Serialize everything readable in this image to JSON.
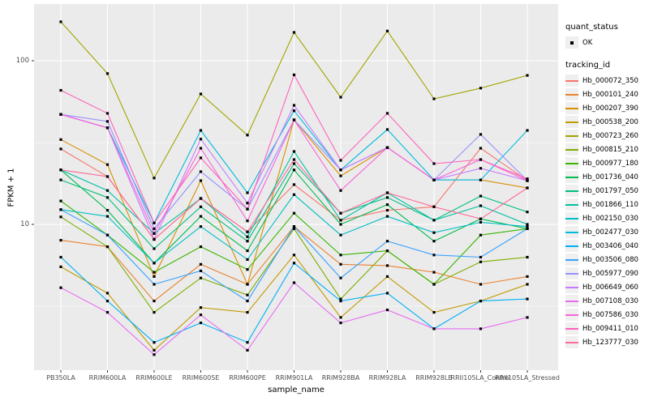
{
  "axes": {
    "x_title": "sample_name",
    "y_title": "FPKM + 1"
  },
  "legend": {
    "quant": {
      "title": "quant_status",
      "items": [
        {
          "label": "OK",
          "marker": "filled-point"
        }
      ]
    },
    "tracking": {
      "title": "tracking_id"
    }
  },
  "chart_data": {
    "type": "line",
    "title": "",
    "xlabel": "sample_name",
    "ylabel": "FPKM + 1",
    "yscale": "log10",
    "ylim": [
      1.2,
      215
    ],
    "y_ticks": [
      100,
      10
    ],
    "y_minor_gridlines": [
      31.62,
      3.162
    ],
    "grid": "white major+minor gridlines on gray panel",
    "panel_color": "#EBEBEB",
    "gridline_color": "#FFFFFF",
    "legend_position": "right",
    "point_marker": {
      "legend_label": "OK",
      "shape": "small-filled-square",
      "color": "#000000"
    },
    "categories": [
      "PB350LA",
      "RRIM600LA",
      "RRIM600LE",
      "RRIM600SE",
      "RRIM600PE",
      "RRIM901LA",
      "RRIM928BA",
      "RRIM928LA",
      "RRIM928LB",
      "RRII105LA_Control",
      "RRII105LA_Stressed"
    ],
    "series": [
      {
        "name": "Hb_000072_350",
        "color": "#F8766D",
        "values": [
          28.9,
          19.6,
          8.1,
          14.4,
          9.0,
          17.5,
          10.6,
          12.2,
          12.8,
          29.2,
          18.5
        ]
      },
      {
        "name": "Hb_000101_240",
        "color": "#EA8331",
        "values": [
          8.0,
          7.3,
          3.4,
          5.7,
          4.3,
          9.7,
          5.7,
          5.6,
          5.1,
          4.3,
          4.8
        ]
      },
      {
        "name": "Hb_000207_390",
        "color": "#D89000",
        "values": [
          33.0,
          23.2,
          4.8,
          18.5,
          4.3,
          43.5,
          19.8,
          29.5,
          18.7,
          18.7,
          16.7
        ]
      },
      {
        "name": "Hb_000538_200",
        "color": "#C09B00",
        "values": [
          5.5,
          3.8,
          1.7,
          3.1,
          2.9,
          6.5,
          2.7,
          4.8,
          2.9,
          3.4,
          4.3
        ]
      },
      {
        "name": "Hb_000723_260",
        "color": "#A3A500",
        "values": [
          173.0,
          83.5,
          19.2,
          62.7,
          35.1,
          149.0,
          59.9,
          152.0,
          58.5,
          68.0,
          81.4
        ]
      },
      {
        "name": "Hb_000815_210",
        "color": "#7CAE00",
        "values": [
          11.1,
          7.3,
          2.9,
          4.7,
          3.7,
          9.4,
          3.5,
          6.9,
          4.3,
          5.9,
          6.3
        ]
      },
      {
        "name": "Hb_000977_180",
        "color": "#39B600",
        "values": [
          13.9,
          8.6,
          5.1,
          7.3,
          5.3,
          11.7,
          6.5,
          6.9,
          4.3,
          8.6,
          9.4
        ]
      },
      {
        "name": "Hb_001736_040",
        "color": "#00BB4E",
        "values": [
          21.5,
          12.2,
          5.8,
          11.2,
          6.9,
          21.5,
          10.0,
          13.2,
          7.9,
          10.8,
          9.4
        ]
      },
      {
        "name": "Hb_001797_050",
        "color": "#00BF7D",
        "values": [
          18.7,
          14.6,
          7.1,
          12.8,
          7.9,
          23.5,
          11.7,
          14.6,
          10.6,
          14.9,
          11.9
        ]
      },
      {
        "name": "Hb_001866_110",
        "color": "#00C1A3",
        "values": [
          21.5,
          16.1,
          8.8,
          14.4,
          8.4,
          27.9,
          10.6,
          15.6,
          10.6,
          13.0,
          10.0
        ]
      },
      {
        "name": "Hb_002150_030",
        "color": "#00BFC4",
        "values": [
          12.3,
          11.2,
          5.8,
          9.7,
          6.1,
          15.2,
          8.6,
          11.2,
          8.9,
          10.3,
          9.7
        ]
      },
      {
        "name": "Hb_002477_030",
        "color": "#00BAE0",
        "values": [
          47.0,
          38.9,
          10.2,
          37.5,
          15.6,
          49.5,
          21.5,
          38.0,
          18.7,
          18.7,
          37.5
        ]
      },
      {
        "name": "Hb_003406_040",
        "color": "#00B0F6",
        "values": [
          6.3,
          3.4,
          1.9,
          2.5,
          1.9,
          5.8,
          3.4,
          3.8,
          2.3,
          3.4,
          3.5
        ]
      },
      {
        "name": "Hb_003506_080",
        "color": "#35A2FF",
        "values": [
          12.3,
          8.6,
          4.3,
          5.2,
          3.4,
          9.7,
          4.7,
          7.9,
          6.5,
          6.3,
          9.4
        ]
      },
      {
        "name": "Hb_005977_090",
        "color": "#9590FF",
        "values": [
          47.0,
          42.6,
          9.4,
          21.0,
          12.4,
          43.5,
          21.5,
          29.5,
          18.7,
          35.5,
          18.5
        ]
      },
      {
        "name": "Hb_006649_060",
        "color": "#C77CFF",
        "values": [
          47.0,
          38.9,
          8.1,
          33.2,
          13.5,
          53.4,
          21.5,
          29.5,
          18.7,
          22.0,
          18.5
        ]
      },
      {
        "name": "Hb_007108_030",
        "color": "#E76BF3",
        "values": [
          4.1,
          2.9,
          1.6,
          2.8,
          1.7,
          4.4,
          2.5,
          3.0,
          2.3,
          2.3,
          2.7
        ]
      },
      {
        "name": "Hb_007586_030",
        "color": "#FA62DB",
        "values": [
          47.0,
          38.9,
          8.8,
          29.2,
          10.5,
          43.5,
          16.1,
          29.5,
          18.7,
          24.9,
          18.5
        ]
      },
      {
        "name": "Hb_009411_010",
        "color": "#FF62BC",
        "values": [
          66.0,
          47.7,
          10.2,
          25.5,
          12.4,
          82.0,
          24.6,
          47.7,
          23.5,
          24.9,
          19.0
        ]
      },
      {
        "name": "Hb_123777_030",
        "color": "#FF6A98",
        "values": [
          21.5,
          19.6,
          8.1,
          14.4,
          9.0,
          24.9,
          11.7,
          15.6,
          12.8,
          10.8,
          16.7
        ]
      }
    ]
  }
}
